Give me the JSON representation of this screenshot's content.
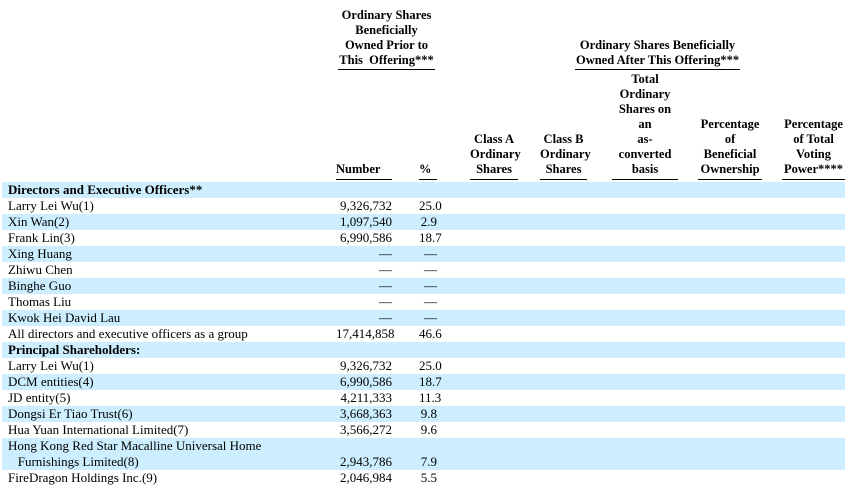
{
  "colors": {
    "row_shade": "#cceeff",
    "text": "#000000",
    "rule": "#000000",
    "background": "#ffffff"
  },
  "table": {
    "group_headers": {
      "prior": "Ordinary Shares\nBeneficially\nOwned Prior to\nThis  Offering***",
      "after": "Ordinary Shares Beneficially\nOwned After This Offering***"
    },
    "column_headers": {
      "number": "Number",
      "percent": "%",
      "class_a": "Class A\nOrdinary\nShares",
      "class_b": "Class B\nOrdinary\nShares",
      "total_as_converted": "Total\nOrdinary\nShares on\nan\nas-converted\nbasis",
      "pct_beneficial": "Percentage\nof\nBeneficial\nOwnership",
      "pct_voting": "Percentage\nof Total\nVoting\nPower****"
    },
    "rows": [
      {
        "name": "Directors and Executive Officers**",
        "bold": true,
        "number": "",
        "pct": ""
      },
      {
        "name": "Larry Lei Wu(1)",
        "bold": false,
        "number": "9,326,732",
        "pct": "25.0"
      },
      {
        "name": "Xin Wan(2)",
        "bold": false,
        "number": "1,097,540",
        "pct": "2.9"
      },
      {
        "name": "Frank Lin(3)",
        "bold": false,
        "number": "6,990,586",
        "pct": "18.7"
      },
      {
        "name": "Xing Huang",
        "bold": false,
        "number": "—",
        "pct": "—"
      },
      {
        "name": "Zhiwu Chen",
        "bold": false,
        "number": "—",
        "pct": "—"
      },
      {
        "name": "Binghe Guo",
        "bold": false,
        "number": "—",
        "pct": "—"
      },
      {
        "name": "Thomas Liu",
        "bold": false,
        "number": "—",
        "pct": "—"
      },
      {
        "name": "Kwok Hei David Lau",
        "bold": false,
        "number": "—",
        "pct": "—"
      },
      {
        "name": "All directors and executive officers as a group",
        "bold": false,
        "number": "17,414,858",
        "pct": "46.6"
      },
      {
        "name": "Principal Shareholders:",
        "bold": true,
        "number": "",
        "pct": ""
      },
      {
        "name": "Larry Lei Wu(1)",
        "bold": false,
        "number": "9,326,732",
        "pct": "25.0"
      },
      {
        "name": "DCM entities(4)",
        "bold": false,
        "number": "6,990,586",
        "pct": "18.7"
      },
      {
        "name": "JD entity(5)",
        "bold": false,
        "number": "4,211,333",
        "pct": "11.3"
      },
      {
        "name": "Dongsi Er Tiao Trust(6)",
        "bold": false,
        "number": "3,668,363",
        "pct": "9.8"
      },
      {
        "name": "Hua Yuan International Limited(7)",
        "bold": false,
        "number": "3,566,272",
        "pct": "9.6"
      },
      {
        "name": "Hong Kong Red Star Macalline Universal Home\n   Furnishings Limited(8)",
        "bold": false,
        "number": "2,943,786",
        "pct": "7.9"
      },
      {
        "name": "FireDragon Holdings Inc.(9)",
        "bold": false,
        "number": "2,046,984",
        "pct": "5.5"
      }
    ]
  }
}
